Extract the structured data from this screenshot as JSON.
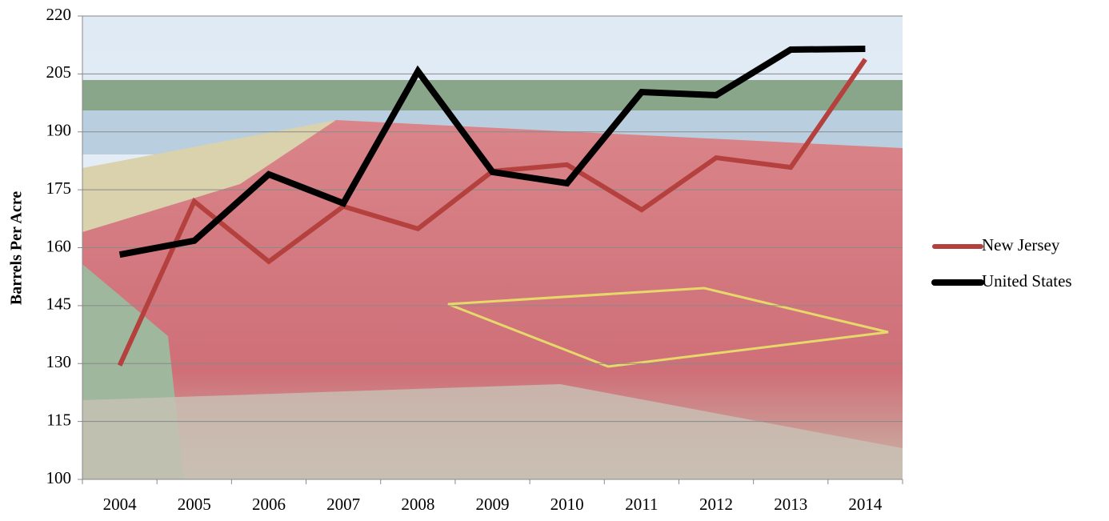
{
  "chart_data": {
    "type": "line",
    "y_label": "Barrels Per Acre",
    "categories": [
      "2004",
      "2005",
      "2006",
      "2007",
      "2008",
      "2009",
      "2010",
      "2011",
      "2012",
      "2013",
      "2014"
    ],
    "series": [
      {
        "name": "New Jersey",
        "color": "#b5413f",
        "values": [
          129.5,
          172,
          156.4,
          170.7,
          164.9,
          179.8,
          181.5,
          169.8,
          183.3,
          180.8,
          208.8
        ]
      },
      {
        "name": "United States",
        "color": "#000000",
        "values": [
          158.2,
          161.8,
          179,
          171.5,
          205.7,
          179.6,
          176.7,
          200.3,
          199.5,
          211.3,
          211.5
        ]
      }
    ],
    "ylim": [
      100,
      220
    ],
    "yticks": [
      100,
      115,
      130,
      145,
      160,
      175,
      190,
      205,
      220
    ],
    "grid": true,
    "legend": "right"
  }
}
